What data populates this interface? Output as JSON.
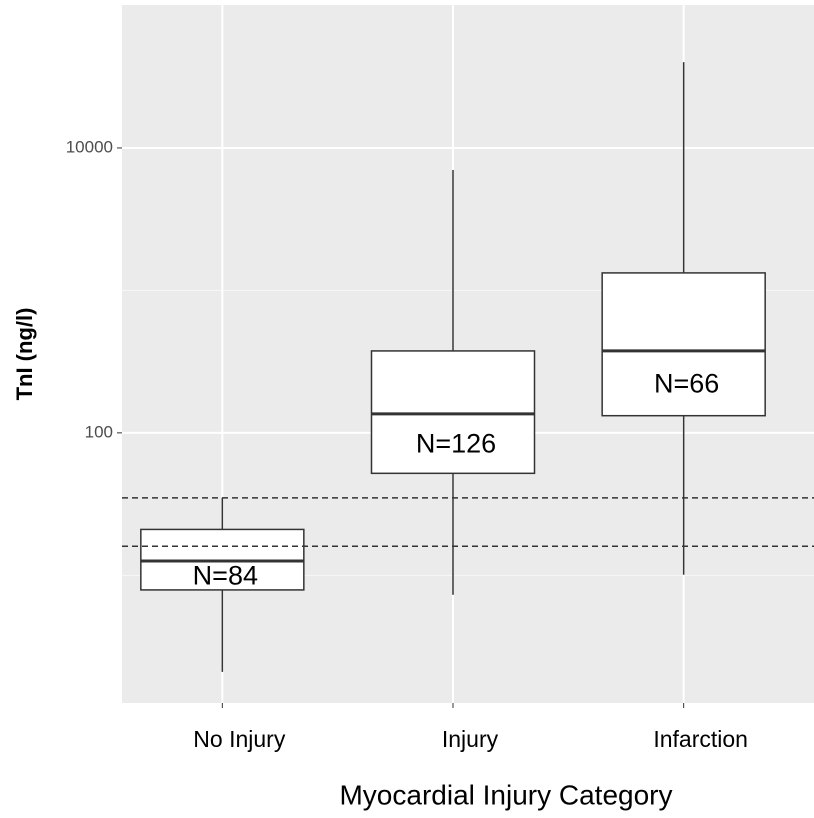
{
  "chart_data": {
    "type": "box",
    "y_label": "TnI (ng/l)",
    "x_label": "Myocardial Injury Category",
    "categories": [
      "No Injury",
      "Injury",
      "Infarction"
    ],
    "whisker_low": [
      2.1,
      7.3,
      10.1
    ],
    "q1": [
      7.9,
      52,
      132
    ],
    "median": [
      12.6,
      136,
      376
    ],
    "q3": [
      21,
      376,
      1327
    ],
    "whisker_high": [
      35,
      7000,
      40000
    ],
    "annotations": [
      "N=84",
      "N=126",
      "N=66"
    ],
    "reference_lines": [
      16,
      35
    ],
    "ylim": [
      1.27,
      100800
    ],
    "yticks": [
      100,
      10000
    ],
    "yminor": [
      10,
      1000
    ],
    "log_y": true,
    "grid": true,
    "box_color": "#ffffff",
    "line_color": "#333333"
  }
}
